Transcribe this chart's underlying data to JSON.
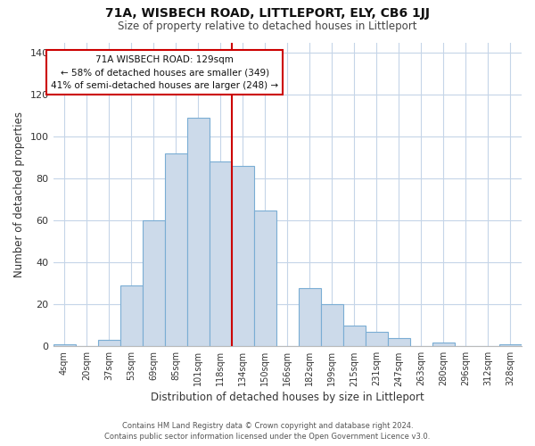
{
  "title": "71A, WISBECH ROAD, LITTLEPORT, ELY, CB6 1JJ",
  "subtitle": "Size of property relative to detached houses in Littleport",
  "xlabel": "Distribution of detached houses by size in Littleport",
  "ylabel": "Number of detached properties",
  "bar_labels": [
    "4sqm",
    "20sqm",
    "37sqm",
    "53sqm",
    "69sqm",
    "85sqm",
    "101sqm",
    "118sqm",
    "134sqm",
    "150sqm",
    "166sqm",
    "182sqm",
    "199sqm",
    "215sqm",
    "231sqm",
    "247sqm",
    "263sqm",
    "280sqm",
    "296sqm",
    "312sqm",
    "328sqm"
  ],
  "bar_values": [
    1,
    0,
    3,
    29,
    60,
    92,
    109,
    88,
    86,
    65,
    0,
    28,
    20,
    10,
    7,
    4,
    0,
    2,
    0,
    0,
    1
  ],
  "bar_color": "#ccdaea",
  "bar_edge_color": "#7aadd4",
  "vline_bar_index": 7,
  "vline_color": "#cc0000",
  "annotation_line1": "71A WISBECH ROAD: 129sqm",
  "annotation_line2": "← 58% of detached houses are smaller (349)",
  "annotation_line3": "41% of semi-detached houses are larger (248) →",
  "annotation_box_color": "#ffffff",
  "annotation_box_edge": "#cc0000",
  "ylim": [
    0,
    145
  ],
  "yticks": [
    0,
    20,
    40,
    60,
    80,
    100,
    120,
    140
  ],
  "footer_line1": "Contains HM Land Registry data © Crown copyright and database right 2024.",
  "footer_line2": "Contains public sector information licensed under the Open Government Licence v3.0.",
  "bg_color": "#ffffff",
  "grid_color": "#c5d5e8",
  "title_fontsize": 10,
  "subtitle_fontsize": 8.5,
  "xlabel_fontsize": 8.5,
  "ylabel_fontsize": 8.5,
  "tick_fontsize": 7,
  "annotation_fontsize": 7.5,
  "footer_fontsize": 6
}
